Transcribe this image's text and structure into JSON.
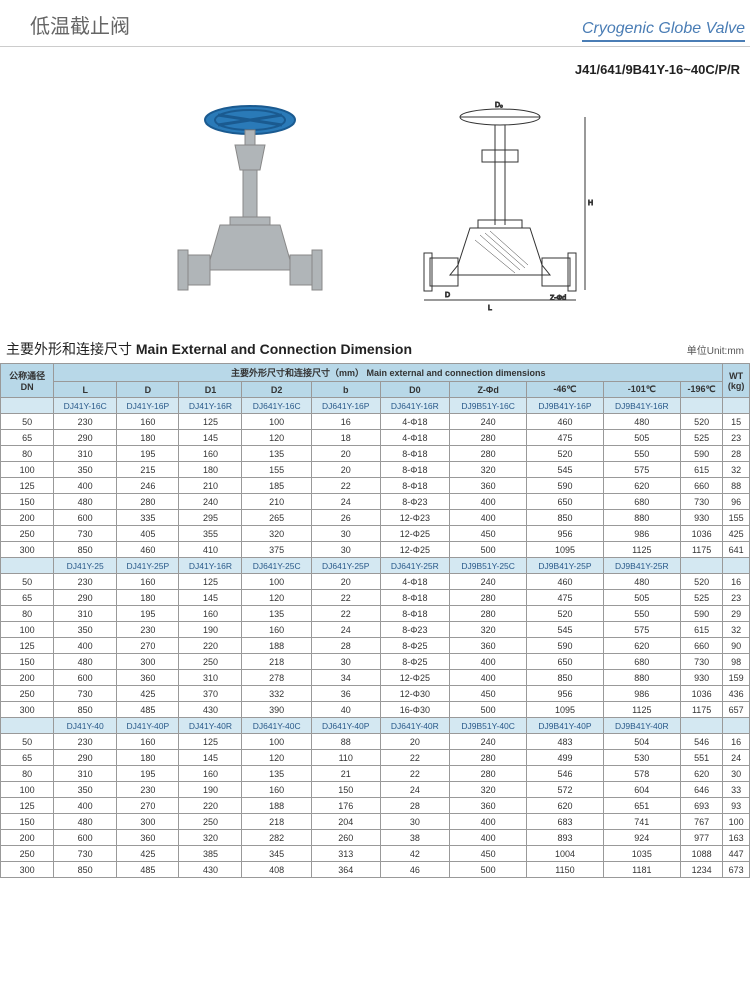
{
  "header": {
    "title_cn": "低温截止阀",
    "title_en": "Cryogenic Globe Valve"
  },
  "model_code": "J41/641/9B41Y-16~40C/P/R",
  "section": {
    "title_cn": "主要外形和连接尺寸",
    "title_en": "Main External and Connection Dimension",
    "unit_label": "单位Unit:mm"
  },
  "table": {
    "dn_label_cn": "公称通径",
    "dn_label_en": "DN",
    "main_header_cn": "主要外形尺寸和连接尺寸（mm）",
    "main_header_en": "Main external and connection dimensions",
    "wt_label": "WT",
    "wt_unit": "(kg)",
    "cols": [
      "L",
      "D",
      "D1",
      "D2",
      "b",
      "D0",
      "Z-Φd",
      "-46℃",
      "-101℃",
      "-196℃"
    ],
    "groups": [
      {
        "models": [
          "DJ41Y-16C",
          "DJ41Y-16P",
          "DJ41Y-16R",
          "DJ641Y-16C",
          "DJ641Y-16P",
          "DJ641Y-16R",
          "DJ9B51Y-16C",
          "DJ9B41Y-16P",
          "DJ9B41Y-16R"
        ],
        "rows": [
          [
            "50",
            "230",
            "160",
            "125",
            "100",
            "16",
            "4-Φ18",
            "240",
            "460",
            "480",
            "520",
            "15"
          ],
          [
            "65",
            "290",
            "180",
            "145",
            "120",
            "18",
            "4-Φ18",
            "280",
            "475",
            "505",
            "525",
            "23"
          ],
          [
            "80",
            "310",
            "195",
            "160",
            "135",
            "20",
            "8-Φ18",
            "280",
            "520",
            "550",
            "590",
            "28"
          ],
          [
            "100",
            "350",
            "215",
            "180",
            "155",
            "20",
            "8-Φ18",
            "320",
            "545",
            "575",
            "615",
            "32"
          ],
          [
            "125",
            "400",
            "246",
            "210",
            "185",
            "22",
            "8-Φ18",
            "360",
            "590",
            "620",
            "660",
            "88"
          ],
          [
            "150",
            "480",
            "280",
            "240",
            "210",
            "24",
            "8-Φ23",
            "400",
            "650",
            "680",
            "730",
            "96"
          ],
          [
            "200",
            "600",
            "335",
            "295",
            "265",
            "26",
            "12-Φ23",
            "400",
            "850",
            "880",
            "930",
            "155"
          ],
          [
            "250",
            "730",
            "405",
            "355",
            "320",
            "30",
            "12-Φ25",
            "450",
            "956",
            "986",
            "1036",
            "425"
          ],
          [
            "300",
            "850",
            "460",
            "410",
            "375",
            "30",
            "12-Φ25",
            "500",
            "1095",
            "1125",
            "1175",
            "641"
          ]
        ]
      },
      {
        "models": [
          "DJ41Y-25",
          "DJ41Y-25P",
          "DJ41Y-16R",
          "DJ641Y-25C",
          "DJ641Y-25P",
          "DJ641Y-25R",
          "DJ9B51Y-25C",
          "DJ9B41Y-25P",
          "DJ9B41Y-25R"
        ],
        "rows": [
          [
            "50",
            "230",
            "160",
            "125",
            "100",
            "20",
            "4-Φ18",
            "240",
            "460",
            "480",
            "520",
            "16"
          ],
          [
            "65",
            "290",
            "180",
            "145",
            "120",
            "22",
            "8-Φ18",
            "280",
            "475",
            "505",
            "525",
            "23"
          ],
          [
            "80",
            "310",
            "195",
            "160",
            "135",
            "22",
            "8-Φ18",
            "280",
            "520",
            "550",
            "590",
            "29"
          ],
          [
            "100",
            "350",
            "230",
            "190",
            "160",
            "24",
            "8-Φ23",
            "320",
            "545",
            "575",
            "615",
            "32"
          ],
          [
            "125",
            "400",
            "270",
            "220",
            "188",
            "28",
            "8-Φ25",
            "360",
            "590",
            "620",
            "660",
            "90"
          ],
          [
            "150",
            "480",
            "300",
            "250",
            "218",
            "30",
            "8-Φ25",
            "400",
            "650",
            "680",
            "730",
            "98"
          ],
          [
            "200",
            "600",
            "360",
            "310",
            "278",
            "34",
            "12-Φ25",
            "400",
            "850",
            "880",
            "930",
            "159"
          ],
          [
            "250",
            "730",
            "425",
            "370",
            "332",
            "36",
            "12-Φ30",
            "450",
            "956",
            "986",
            "1036",
            "436"
          ],
          [
            "300",
            "850",
            "485",
            "430",
            "390",
            "40",
            "16-Φ30",
            "500",
            "1095",
            "1125",
            "1175",
            "657"
          ]
        ]
      },
      {
        "models": [
          "DJ41Y-40",
          "DJ41Y-40P",
          "DJ41Y-40R",
          "DJ641Y-40C",
          "DJ641Y-40P",
          "DJ641Y-40R",
          "DJ9B51Y-40C",
          "DJ9B41Y-40P",
          "DJ9B41Y-40R"
        ],
        "rows": [
          [
            "50",
            "230",
            "160",
            "125",
            "100",
            "88",
            "20",
            "240",
            "483",
            "504",
            "546",
            "16"
          ],
          [
            "65",
            "290",
            "180",
            "145",
            "120",
            "110",
            "22",
            "280",
            "499",
            "530",
            "551",
            "24"
          ],
          [
            "80",
            "310",
            "195",
            "160",
            "135",
            "21",
            "22",
            "280",
            "546",
            "578",
            "620",
            "30"
          ],
          [
            "100",
            "350",
            "230",
            "190",
            "160",
            "150",
            "24",
            "320",
            "572",
            "604",
            "646",
            "33"
          ],
          [
            "125",
            "400",
            "270",
            "220",
            "188",
            "176",
            "28",
            "360",
            "620",
            "651",
            "693",
            "93"
          ],
          [
            "150",
            "480",
            "300",
            "250",
            "218",
            "204",
            "30",
            "400",
            "683",
            "741",
            "767",
            "100"
          ],
          [
            "200",
            "600",
            "360",
            "320",
            "282",
            "260",
            "38",
            "400",
            "893",
            "924",
            "977",
            "163"
          ],
          [
            "250",
            "730",
            "425",
            "385",
            "345",
            "313",
            "42",
            "450",
            "1004",
            "1035",
            "1088",
            "447"
          ],
          [
            "300",
            "850",
            "485",
            "430",
            "408",
            "364",
            "46",
            "500",
            "1150",
            "1181",
            "1234",
            "673"
          ]
        ]
      }
    ]
  },
  "colors": {
    "header_blue": "#4a7db5",
    "handwheel": "#2a7ab8",
    "valve_body": "#b0b5b8",
    "table_header_bg": "#b8d8e8",
    "subheader_bg": "#d4e8f2"
  }
}
